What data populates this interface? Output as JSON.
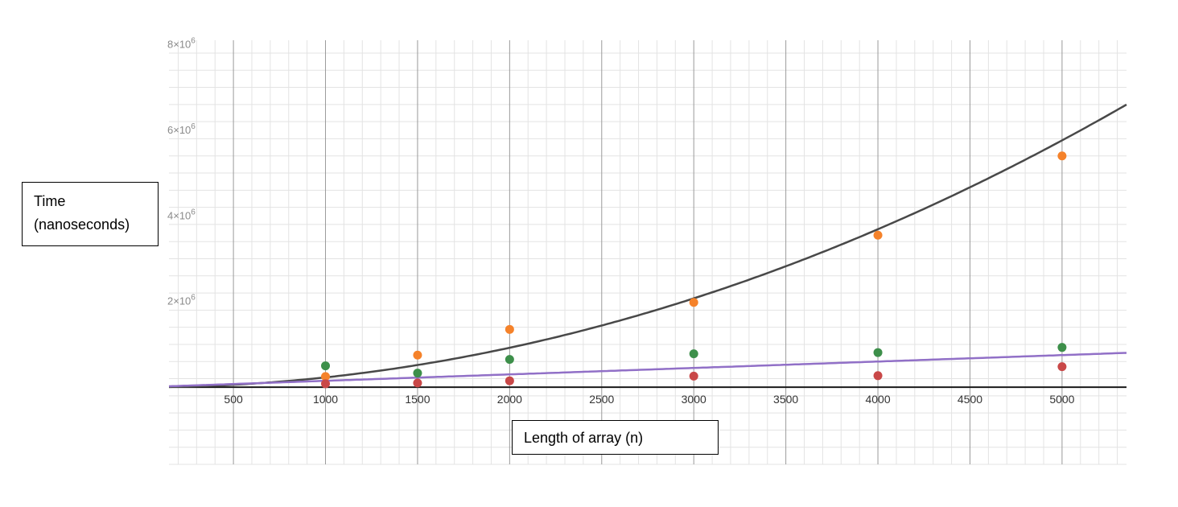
{
  "chart_data": {
    "type": "scatter",
    "xlabel": "Length of array (n)",
    "ylabel_lines": [
      "Time",
      "(nanoseconds)"
    ],
    "x_ticks": [
      "500",
      "1000",
      "1500",
      "2000",
      "2500",
      "3000",
      "3500",
      "4000",
      "4500",
      "5000"
    ],
    "y_ticks": [
      {
        "value": 2000000,
        "mantissa": "2",
        "exponent": "6"
      },
      {
        "value": 4000000,
        "mantissa": "4",
        "exponent": "6"
      },
      {
        "value": 6000000,
        "mantissa": "6",
        "exponent": "6"
      },
      {
        "value": 8000000,
        "mantissa": "8",
        "exponent": "6"
      }
    ],
    "xlim": [
      150,
      5350
    ],
    "ylim": [
      -1800000,
      8100000
    ],
    "grid": true,
    "colors": {
      "series1": "#f5822a",
      "series2": "#3d8f4a",
      "series3": "#c94848",
      "curve1": "#484848",
      "curve2": "#9170c7"
    },
    "series": [
      {
        "color": "#f5822a",
        "x": [
          1000,
          1500,
          2000,
          3000,
          4000,
          5000
        ],
        "y": [
          250000,
          750000,
          1350000,
          1980000,
          3550000,
          5400000
        ]
      },
      {
        "color": "#3d8f4a",
        "x": [
          1000,
          1500,
          2000,
          3000,
          4000,
          5000
        ],
        "y": [
          500000,
          330000,
          650000,
          780000,
          810000,
          930000
        ]
      },
      {
        "color": "#c94848",
        "x": [
          1000,
          1500,
          2000,
          3000,
          4000,
          5000
        ],
        "y": [
          80000,
          100000,
          150000,
          260000,
          270000,
          480000
        ]
      }
    ],
    "fitted_curves": [
      {
        "color": "#484848",
        "form": "a*x^2",
        "a": 0.2305
      },
      {
        "color": "#9170c7",
        "form": "a*x",
        "a": 150
      }
    ]
  }
}
